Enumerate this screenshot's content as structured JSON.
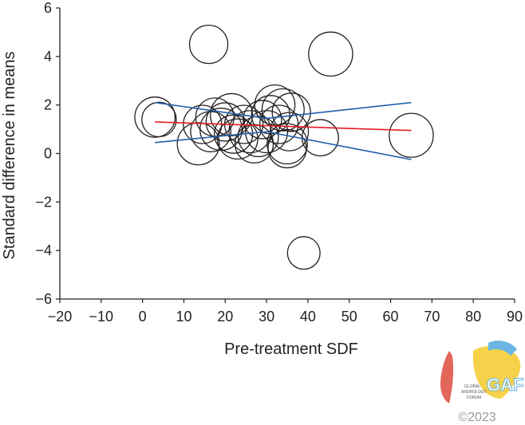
{
  "chart_data": {
    "type": "scatter",
    "xlabel": "Pre-treatment SDF",
    "ylabel": "Standard difference in means",
    "xlim": [
      -20,
      90
    ],
    "ylim": [
      -6,
      6
    ],
    "x_ticks": [
      -20,
      -10,
      0,
      10,
      20,
      30,
      40,
      50,
      60,
      70,
      80,
      90
    ],
    "y_ticks": [
      -6,
      -4,
      -2,
      0,
      2,
      4,
      6
    ],
    "x_tick_labels": [
      "−20",
      "−10",
      "0",
      "10",
      "20",
      "30",
      "40",
      "50",
      "60",
      "70",
      "80",
      "90"
    ],
    "y_tick_labels": [
      "−6",
      "−4",
      "−2",
      "0",
      "2",
      "4",
      "6"
    ],
    "points": [
      {
        "x": 16,
        "y": 4.5,
        "weight": 1.0
      },
      {
        "x": 45.5,
        "y": 4.1,
        "weight": 1.15
      },
      {
        "x": 39,
        "y": -4.1,
        "weight": 0.85
      },
      {
        "x": 3,
        "y": 1.5,
        "weight": 1.05
      },
      {
        "x": 4,
        "y": 1.4,
        "weight": 0.9
      },
      {
        "x": 13.5,
        "y": 0.4,
        "weight": 1.1
      },
      {
        "x": 14.5,
        "y": 1.2,
        "weight": 1.0
      },
      {
        "x": 16.5,
        "y": 0.9,
        "weight": 1.05
      },
      {
        "x": 17.5,
        "y": 1.5,
        "weight": 1.0
      },
      {
        "x": 19,
        "y": 1.0,
        "weight": 1.1
      },
      {
        "x": 20,
        "y": 1.3,
        "weight": 1.0
      },
      {
        "x": 21.5,
        "y": 1.6,
        "weight": 1.1
      },
      {
        "x": 22,
        "y": 0.8,
        "weight": 1.0
      },
      {
        "x": 23,
        "y": 0.6,
        "weight": 1.05
      },
      {
        "x": 24.5,
        "y": 1.2,
        "weight": 1.0
      },
      {
        "x": 26,
        "y": 0.9,
        "weight": 1.1
      },
      {
        "x": 27,
        "y": 0.4,
        "weight": 1.0
      },
      {
        "x": 28,
        "y": 0.7,
        "weight": 1.05
      },
      {
        "x": 29,
        "y": 1.4,
        "weight": 1.0
      },
      {
        "x": 30,
        "y": 0.9,
        "weight": 1.1
      },
      {
        "x": 31,
        "y": 1.6,
        "weight": 1.0
      },
      {
        "x": 32,
        "y": 2.0,
        "weight": 1.05
      },
      {
        "x": 33,
        "y": 1.2,
        "weight": 1.0
      },
      {
        "x": 34,
        "y": 1.8,
        "weight": 1.1
      },
      {
        "x": 35,
        "y": 0.4,
        "weight": 1.05
      },
      {
        "x": 35.5,
        "y": 0.9,
        "weight": 1.0
      },
      {
        "x": 36,
        "y": 1.7,
        "weight": 1.0
      },
      {
        "x": 35,
        "y": 0.2,
        "weight": 1.0
      },
      {
        "x": 43,
        "y": 0.65,
        "weight": 0.95
      },
      {
        "x": 65,
        "y": 0.75,
        "weight": 1.15
      }
    ],
    "regression_line": {
      "x": [
        3,
        65
      ],
      "y": [
        1.3,
        0.95
      ],
      "color": "#e31b23"
    },
    "ci_upper": {
      "x": [
        3,
        30,
        65
      ],
      "y": [
        2.1,
        1.45,
        2.1
      ],
      "color": "#1f5fad"
    },
    "ci_lower": {
      "x": [
        3,
        30,
        65
      ],
      "y": [
        0.45,
        0.9,
        -0.25
      ],
      "color": "#1f5fad"
    },
    "grid": false
  },
  "logo": {
    "line1": "GLOBAL",
    "line2": "ANDROLOGY",
    "line3": "FORUM",
    "mark": "GAF",
    "copyright": "©2023"
  }
}
